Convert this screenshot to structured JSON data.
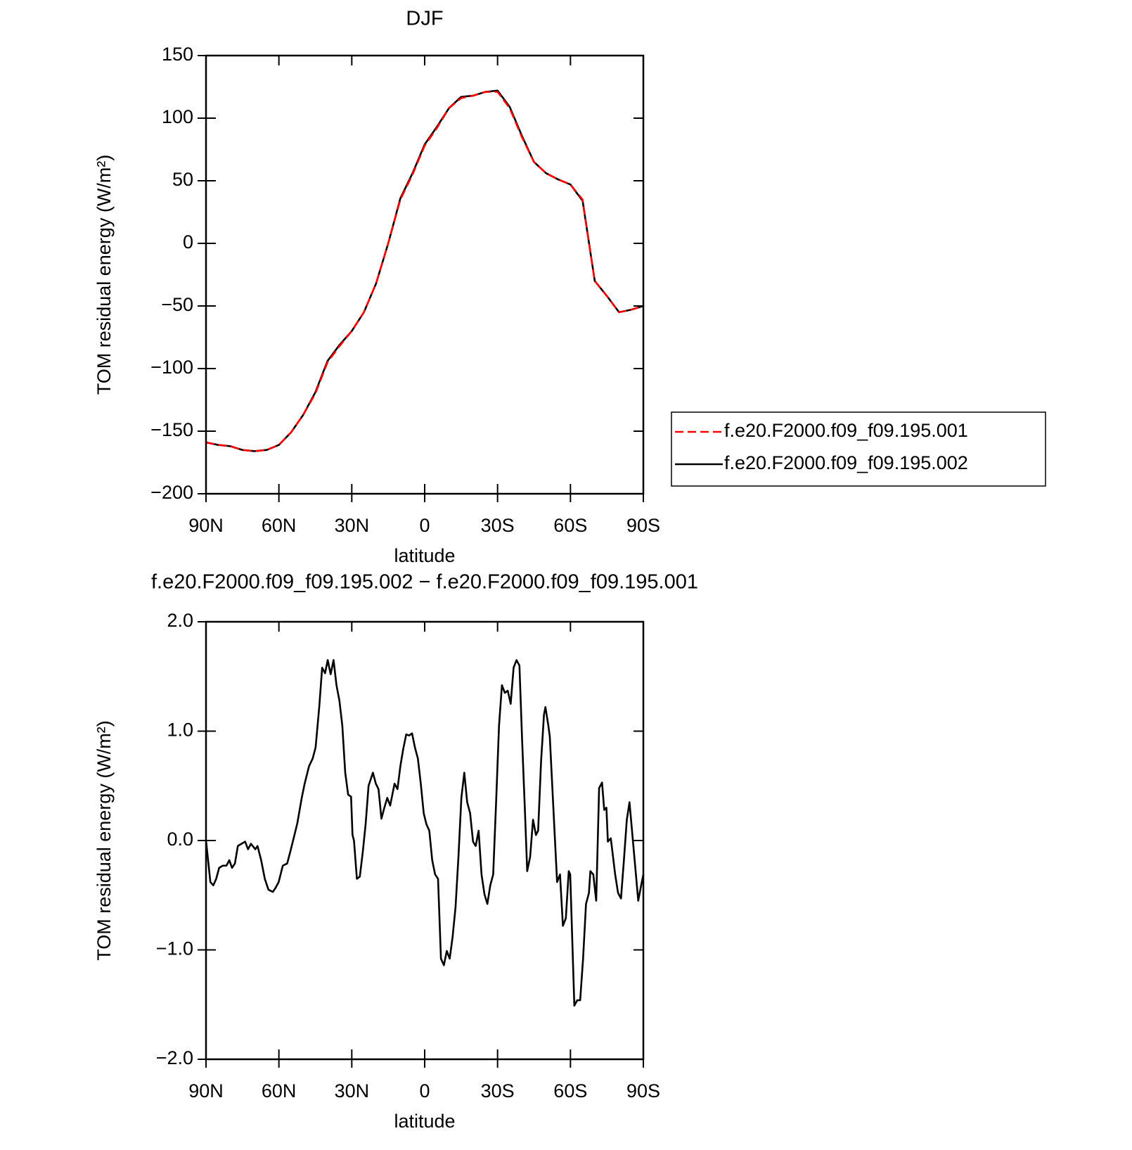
{
  "chart_data": [
    {
      "type": "line",
      "title": "DJF",
      "xlabel": "latitude",
      "ylabel": "TOM residual energy (W/m²)",
      "x": [
        90,
        85,
        80,
        75,
        70,
        65,
        60,
        55,
        50,
        45,
        40,
        35,
        30,
        25,
        20,
        15,
        10,
        5,
        0,
        -5,
        -10,
        -15,
        -20,
        -25,
        -30,
        -35,
        -40,
        -45,
        -50,
        -55,
        -60,
        -65,
        -70,
        -75,
        -80,
        -85,
        -90
      ],
      "series": [
        {
          "name": "f.e20.F2000.f09_f09.195.001",
          "color": "#ff0000",
          "linestyle": "dashed",
          "values": [
            -159,
            -161,
            -162,
            -165,
            -166,
            -165,
            -161,
            -151,
            -137,
            -120,
            -95,
            -82,
            -70,
            -55,
            -32,
            0,
            35,
            55,
            78,
            92,
            108,
            116,
            118,
            121,
            121,
            108,
            85,
            65,
            56,
            51,
            47,
            35,
            -30,
            -42,
            -55,
            -53,
            -50
          ]
        },
        {
          "name": "f.e20.F2000.f09_f09.195.002",
          "color": "#000000",
          "linestyle": "solid",
          "values": [
            -159,
            -161,
            -162,
            -165,
            -166,
            -165,
            -161,
            -151,
            -137,
            -119,
            -94,
            -81,
            -70,
            -55,
            -32,
            0,
            36,
            56,
            79,
            93,
            108,
            117,
            118,
            121,
            122,
            109,
            86,
            65,
            56,
            51,
            47,
            34,
            -30,
            -42,
            -55,
            -53,
            -50
          ]
        }
      ],
      "xlim": [
        90,
        -90
      ],
      "xticks": [
        {
          "value": 90,
          "label": "90N"
        },
        {
          "value": 60,
          "label": "60N"
        },
        {
          "value": 30,
          "label": "30N"
        },
        0,
        {
          "value": -30,
          "label": "30S"
        },
        {
          "value": -60,
          "label": "60S"
        },
        {
          "value": -90,
          "label": "90S"
        }
      ],
      "ylim": [
        -200,
        150
      ],
      "yticks": [
        {
          "value": -200,
          "label": "−200"
        },
        {
          "value": -150,
          "label": "−150"
        },
        {
          "value": -100,
          "label": "−100"
        },
        {
          "value": -50,
          "label": "−50"
        },
        0,
        50,
        100,
        150
      ],
      "legend": "right"
    },
    {
      "type": "line",
      "title": "f.e20.F2000.f09_f09.195.002 − f.e20.F2000.f09_f09.195.001",
      "xlabel": "latitude",
      "ylabel": "TOM residual energy (W/m²)",
      "x": [
        90,
        88.2,
        87,
        85.8,
        84.6,
        83.1,
        81.6,
        80.4,
        79.3,
        78.1,
        76.9,
        75.4,
        73.9,
        72.7,
        71.5,
        69.7,
        68.8,
        67.3,
        65.8,
        64.3,
        62.5,
        61.3,
        60.1,
        58.4,
        56.6,
        55.4,
        53.6,
        52.4,
        50.6,
        49.4,
        47.6,
        46.1,
        44.9,
        43.4,
        42.2,
        41,
        39.9,
        38.7,
        37.5,
        36.3,
        35.1,
        33.9,
        32.7,
        31.5,
        30.3,
        29.7,
        29.1,
        27.9,
        26.7,
        25.5,
        24.3,
        23.1,
        21.3,
        20.1,
        19,
        17.8,
        16.6,
        15.4,
        14.2,
        12.4,
        11.2,
        10,
        8.8,
        7.6,
        6.4,
        5.2,
        4,
        2.8,
        1.6,
        0.4,
        -0.7,
        -1.9,
        -3.1,
        -4.3,
        -5.5,
        -6.7,
        -7.9,
        -9.1,
        -10.3,
        -11.5,
        -12.7,
        -13.9,
        -15.1,
        -16.3,
        -17.5,
        -18.7,
        -19.9,
        -21,
        -22.2,
        -23.4,
        -24.6,
        -25.8,
        -27,
        -28.2,
        -29.4,
        -30.6,
        -31.8,
        -33,
        -34.2,
        -35.4,
        -36.6,
        -37.8,
        -39,
        -40.1,
        -41.3,
        -42.2,
        -43.4,
        -44.6,
        -45.8,
        -46.7,
        -47.9,
        -49.1,
        -49.7,
        -50.9,
        -51.5,
        -53.3,
        -54.5,
        -55.7,
        -56.9,
        -58.1,
        -59.3,
        -59.9,
        -61.6,
        -62.8,
        -64,
        -65.2,
        -66.4,
        -67.6,
        -68.2,
        -69.4,
        -70.6,
        -71.8,
        -73,
        -73.9,
        -74.8,
        -75.4,
        -76.6,
        -78.4,
        -79.6,
        -80.8,
        -82,
        -83.2,
        -84.3,
        -85.5,
        -86.7,
        -87.9,
        -89.1,
        -90
      ],
      "series": [
        {
          "color": "#000000",
          "linestyle": "solid",
          "values": [
            0,
            -0.38,
            -0.41,
            -0.35,
            -0.25,
            -0.23,
            -0.23,
            -0.18,
            -0.25,
            -0.21,
            -0.05,
            -0.03,
            -0.01,
            -0.08,
            -0.03,
            -0.08,
            -0.05,
            -0.18,
            -0.35,
            -0.45,
            -0.47,
            -0.43,
            -0.38,
            -0.23,
            -0.21,
            -0.11,
            0.05,
            0.16,
            0.39,
            0.52,
            0.68,
            0.75,
            0.85,
            1.22,
            1.58,
            1.53,
            1.65,
            1.52,
            1.65,
            1.42,
            1.28,
            1.05,
            0.62,
            0.42,
            0.4,
            0.05,
            0,
            -0.35,
            -0.33,
            -0.11,
            0.15,
            0.5,
            0.62,
            0.52,
            0.47,
            0.2,
            0.3,
            0.39,
            0.32,
            0.52,
            0.47,
            0.68,
            0.84,
            0.97,
            0.96,
            0.98,
            0.85,
            0.75,
            0.52,
            0.25,
            0.15,
            0.09,
            -0.18,
            -0.31,
            -0.35,
            -1.08,
            -1.14,
            -1.01,
            -1.08,
            -0.88,
            -0.61,
            -0.15,
            0.39,
            0.62,
            0.35,
            0.25,
            -0.01,
            -0.05,
            0.09,
            -0.31,
            -0.49,
            -0.58,
            -0.41,
            -0.31,
            0.35,
            1.05,
            1.42,
            1.35,
            1.37,
            1.25,
            1.58,
            1.65,
            1.6,
            0.92,
            0.25,
            -0.28,
            -0.15,
            0.19,
            0.05,
            0.09,
            0.72,
            1.15,
            1.22,
            1.05,
            0.95,
            0.15,
            -0.38,
            -0.31,
            -0.78,
            -0.71,
            -0.28,
            -0.31,
            -1.51,
            -1.46,
            -1.46,
            -1.08,
            -0.58,
            -0.48,
            -0.28,
            -0.31,
            -0.55,
            0.48,
            0.53,
            0.28,
            0.3,
            -0.01,
            0.02,
            -0.31,
            -0.48,
            -0.53,
            -0.18,
            0.19,
            0.35,
            0.05,
            -0.25,
            -0.55,
            -0.41,
            -0.31
          ]
        }
      ],
      "xlim": [
        90,
        -90
      ],
      "xticks": [
        {
          "value": 90,
          "label": "90N"
        },
        {
          "value": 60,
          "label": "60N"
        },
        {
          "value": 30,
          "label": "30N"
        },
        0,
        {
          "value": -30,
          "label": "30S"
        },
        {
          "value": -60,
          "label": "60S"
        },
        {
          "value": -90,
          "label": "90S"
        }
      ],
      "ylim": [
        -2,
        2
      ],
      "yticks": [
        {
          "value": -2,
          "label": "−2.0"
        },
        {
          "value": -1,
          "label": "−1.0"
        },
        {
          "value": 0,
          "label": "0.0"
        },
        {
          "value": 1,
          "label": "1.0"
        },
        {
          "value": 2,
          "label": "2.0"
        }
      ]
    }
  ]
}
